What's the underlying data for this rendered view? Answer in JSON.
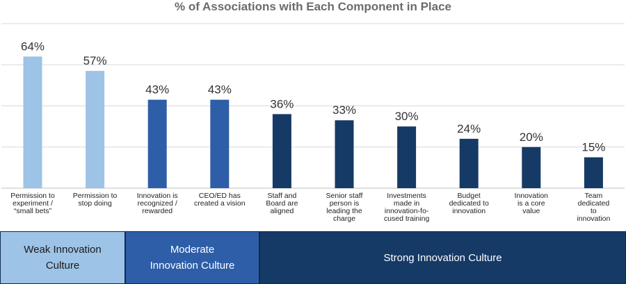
{
  "chart_data": {
    "type": "bar",
    "title": "% of Associations with Each Component in Place",
    "categories": [
      [
        "Permission to",
        "experiment /",
        "“small bets”"
      ],
      [
        "Permission to",
        "stop doing"
      ],
      [
        "Innovation is",
        "recognized /",
        "rewarded"
      ],
      [
        "CEO/ED has",
        "created a vision"
      ],
      [
        "Staff and",
        "Board are",
        "aligned"
      ],
      [
        "Senior staff",
        "person is",
        "leading the",
        "charge"
      ],
      [
        "Investments",
        "made in",
        "innovation-fo-",
        "cused training"
      ],
      [
        "Budget",
        "dedicated to",
        "innovation"
      ],
      [
        "Innovation",
        "is a core",
        "value"
      ],
      [
        "Team",
        "dedicated",
        "to",
        "innovation"
      ]
    ],
    "values": [
      64,
      57,
      43,
      43,
      36,
      33,
      30,
      24,
      20,
      15
    ],
    "value_labels": [
      "64%",
      "57%",
      "43%",
      "43%",
      "36%",
      "33%",
      "30%",
      "24%",
      "20%",
      "15%"
    ],
    "groups": [
      0,
      0,
      1,
      1,
      2,
      2,
      2,
      2,
      2,
      2
    ],
    "ylim": [
      0,
      80
    ],
    "gridlines": [
      20,
      40,
      60,
      80
    ],
    "grid": true,
    "colors": {
      "weak": "#9dc3e6",
      "moderate": "#2e5ea8",
      "strong": "#163a66",
      "grid": "#d9d9d9",
      "title": "#6b6b6b"
    }
  },
  "bands": [
    {
      "label": "Weak Innovation\nCulture",
      "color": "#9dc3e6"
    },
    {
      "label": "Moderate\nInnovation Culture",
      "color": "#2e5ea8"
    },
    {
      "label": "Strong Innovation Culture",
      "color": "#163a66"
    }
  ]
}
